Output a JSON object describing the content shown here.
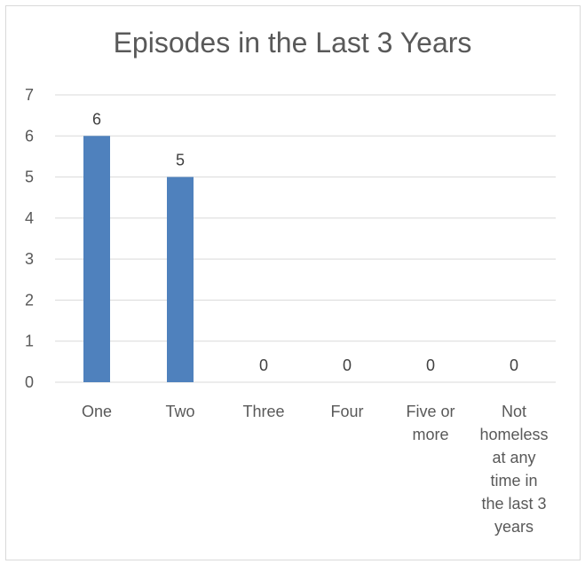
{
  "chart_data": {
    "type": "bar",
    "title": "Episodes in the Last 3 Years",
    "xlabel": "",
    "ylabel": "",
    "categories": [
      [
        "One"
      ],
      [
        "Two"
      ],
      [
        "Three"
      ],
      [
        "Four"
      ],
      [
        "Five or",
        "more"
      ],
      [
        "Not",
        "homeless",
        "at any",
        "time in",
        "the last 3",
        "years"
      ]
    ],
    "values": [
      6,
      5,
      0,
      0,
      0,
      0
    ],
    "data_labels": [
      "6",
      "5",
      "0",
      "0",
      "0",
      "0"
    ],
    "yticks": [
      "0",
      "1",
      "2",
      "3",
      "4",
      "5",
      "6",
      "7"
    ],
    "ylim": [
      0,
      7
    ],
    "grid": true,
    "legend": "none",
    "bar_color": "#4f81bd",
    "grid_color": "#d9d9d9"
  }
}
